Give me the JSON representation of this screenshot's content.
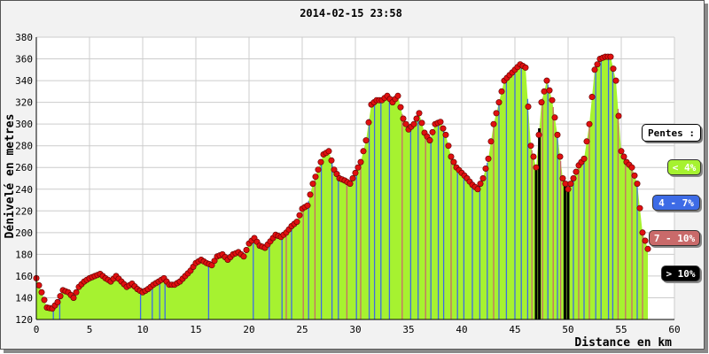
{
  "chart_data": {
    "type": "area",
    "title": "2014-02-15 23:58",
    "xlabel": "Distance en km",
    "ylabel": "Dénivelé en metres",
    "xlim": [
      0,
      60
    ],
    "ylim": [
      120,
      380
    ],
    "xticks": [
      "0",
      "5",
      "10",
      "15",
      "20",
      "25",
      "30",
      "35",
      "40",
      "45",
      "50",
      "55",
      "60"
    ],
    "yticks": [
      "120",
      "140",
      "160",
      "180",
      "200",
      "220",
      "240",
      "260",
      "280",
      "300",
      "320",
      "340",
      "360",
      "380"
    ],
    "grid": true,
    "legend": {
      "title": "Pentes :",
      "placement": "right",
      "items": [
        {
          "label": "< 4%",
          "color": "#a6f230"
        },
        {
          "label": "4 - 7%",
          "color": "#3d6be6"
        },
        {
          "label": "7 - 10%",
          "color": "#c96a6a"
        },
        {
          "label": "> 10%",
          "color": "#000000"
        }
      ]
    },
    "fill_color": "#a6f230",
    "point_color": "#e01010",
    "x": [
      0,
      0.5,
      1,
      1.5,
      2,
      2.5,
      3,
      3.5,
      4,
      4.5,
      5,
      5.5,
      6,
      6.5,
      7,
      7.5,
      8,
      8.5,
      9,
      9.5,
      10,
      10.5,
      11,
      11.5,
      12,
      12.5,
      13,
      13.5,
      14,
      14.5,
      15,
      15.5,
      16,
      16.5,
      17,
      17.5,
      18,
      18.5,
      19,
      19.5,
      20,
      20.5,
      21,
      21.5,
      22,
      22.5,
      23,
      23.5,
      24,
      24.5,
      25,
      25.5,
      26,
      26.5,
      27,
      27.5,
      28,
      28.5,
      29,
      29.5,
      30,
      30.5,
      31,
      31.5,
      32,
      32.5,
      33,
      33.5,
      34,
      34.5,
      35,
      35.5,
      36,
      36.5,
      37,
      37.5,
      38,
      38.5,
      39,
      39.5,
      40,
      40.5,
      41,
      41.5,
      42,
      42.5,
      43,
      43.5,
      44,
      44.5,
      45,
      45.5,
      46,
      46.5,
      47,
      47.5,
      48,
      48.5,
      49,
      49.5,
      50,
      50.5,
      51,
      51.5,
      52,
      52.5,
      53,
      53.5,
      54,
      54.5,
      55,
      55.5,
      56,
      56.5,
      57,
      57.5
    ],
    "values": [
      158,
      145,
      131,
      130,
      136,
      147,
      145,
      140,
      150,
      155,
      158,
      160,
      162,
      158,
      155,
      160,
      155,
      150,
      153,
      148,
      145,
      148,
      152,
      155,
      158,
      152,
      152,
      155,
      160,
      165,
      172,
      175,
      172,
      170,
      178,
      180,
      175,
      180,
      182,
      178,
      190,
      195,
      188,
      186,
      192,
      198,
      196,
      200,
      206,
      210,
      222,
      225,
      245,
      258,
      272,
      275,
      258,
      250,
      248,
      245,
      255,
      265,
      285,
      318,
      322,
      322,
      326,
      320,
      326,
      305,
      295,
      300,
      310,
      292,
      285,
      300,
      302,
      290,
      270,
      260,
      255,
      250,
      244,
      240,
      250,
      268,
      300,
      320,
      340,
      345,
      350,
      355,
      352,
      280,
      260,
      320,
      340,
      322,
      290,
      250,
      240,
      250,
      262,
      268,
      300,
      350,
      360,
      362,
      362,
      340,
      275,
      265,
      260,
      245,
      200,
      185
    ],
    "slope_bars": [
      {
        "x": 1.6,
        "class": 1
      },
      {
        "x": 2.2,
        "class": 1
      },
      {
        "x": 9.8,
        "class": 1
      },
      {
        "x": 10.9,
        "class": 1
      },
      {
        "x": 11.6,
        "class": 1
      },
      {
        "x": 12.1,
        "class": 1
      },
      {
        "x": 16.2,
        "class": 1
      },
      {
        "x": 20.4,
        "class": 1
      },
      {
        "x": 21.9,
        "class": 1
      },
      {
        "x": 23.1,
        "class": 1
      },
      {
        "x": 23.5,
        "class": 2
      },
      {
        "x": 24.0,
        "class": 1
      },
      {
        "x": 25.1,
        "class": 2
      },
      {
        "x": 25.6,
        "class": 1
      },
      {
        "x": 26.2,
        "class": 2
      },
      {
        "x": 26.8,
        "class": 1
      },
      {
        "x": 27.8,
        "class": 1
      },
      {
        "x": 28.4,
        "class": 1
      },
      {
        "x": 29.2,
        "class": 2
      },
      {
        "x": 30.1,
        "class": 1
      },
      {
        "x": 30.5,
        "class": 2
      },
      {
        "x": 31.3,
        "class": 1
      },
      {
        "x": 31.8,
        "class": 1
      },
      {
        "x": 32.4,
        "class": 1
      },
      {
        "x": 33.2,
        "class": 1
      },
      {
        "x": 34.4,
        "class": 2
      },
      {
        "x": 35.2,
        "class": 1
      },
      {
        "x": 35.9,
        "class": 1
      },
      {
        "x": 36.6,
        "class": 2
      },
      {
        "x": 37.1,
        "class": 1
      },
      {
        "x": 37.8,
        "class": 1
      },
      {
        "x": 38.3,
        "class": 1
      },
      {
        "x": 39.0,
        "class": 2
      },
      {
        "x": 39.6,
        "class": 1
      },
      {
        "x": 40.2,
        "class": 1
      },
      {
        "x": 41.0,
        "class": 1
      },
      {
        "x": 41.7,
        "class": 1
      },
      {
        "x": 42.4,
        "class": 1
      },
      {
        "x": 43.0,
        "class": 2
      },
      {
        "x": 43.5,
        "class": 1
      },
      {
        "x": 44.2,
        "class": 1
      },
      {
        "x": 45.0,
        "class": 1
      },
      {
        "x": 45.6,
        "class": 1
      },
      {
        "x": 46.2,
        "class": 1
      },
      {
        "x": 46.6,
        "class": 2
      },
      {
        "x": 47.0,
        "class": 3
      },
      {
        "x": 47.3,
        "class": 3
      },
      {
        "x": 47.6,
        "class": 2
      },
      {
        "x": 48.1,
        "class": 1
      },
      {
        "x": 48.6,
        "class": 2
      },
      {
        "x": 49.0,
        "class": 1
      },
      {
        "x": 49.3,
        "class": 2
      },
      {
        "x": 49.7,
        "class": 3
      },
      {
        "x": 50.0,
        "class": 3
      },
      {
        "x": 50.5,
        "class": 1
      },
      {
        "x": 51.0,
        "class": 2
      },
      {
        "x": 51.5,
        "class": 1
      },
      {
        "x": 52.0,
        "class": 2
      },
      {
        "x": 52.6,
        "class": 1
      },
      {
        "x": 53.1,
        "class": 1
      },
      {
        "x": 53.8,
        "class": 1
      },
      {
        "x": 54.2,
        "class": 1
      },
      {
        "x": 54.7,
        "class": 2
      },
      {
        "x": 55.4,
        "class": 2
      },
      {
        "x": 56.0,
        "class": 2
      },
      {
        "x": 56.5,
        "class": 1
      },
      {
        "x": 57.0,
        "class": 2
      }
    ]
  }
}
